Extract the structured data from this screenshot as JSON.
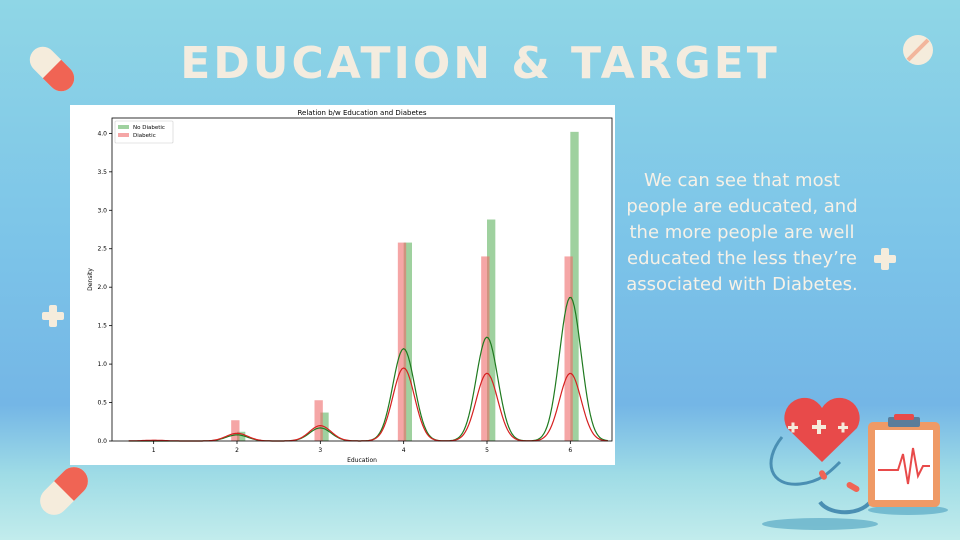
{
  "slide": {
    "title": "EDUCATION & TARGET",
    "description": "We can see that most people are educated, and the more people are well educated the less they’re associated with Diabetes."
  },
  "colors": {
    "no_diabetic": "#5fb35f",
    "diabetic": "#ee6b6b",
    "kde_no_diabetic": "#1f7a1f",
    "kde_diabetic": "#d62020"
  },
  "icons": [
    "pill-icon",
    "plus-icon",
    "heart-icon",
    "clipboard-icon",
    "stethoscope-icon"
  ],
  "chart_data": {
    "type": "bar",
    "title": "Relation b/w Education and Diabetes",
    "xlabel": "Education",
    "ylabel": "Density",
    "xlim": [
      0.5,
      6.5
    ],
    "ylim": [
      0,
      4.2
    ],
    "xticks": [
      "1",
      "2",
      "3",
      "4",
      "5",
      "6"
    ],
    "yticks": [
      "0.0",
      "0.5",
      "1.0",
      "1.5",
      "2.0",
      "2.5",
      "3.0",
      "3.5",
      "4.0"
    ],
    "legend_position": "top-left",
    "grid": false,
    "series": [
      {
        "name": "No Diabetic",
        "x": [
          1,
          2,
          3,
          4,
          5,
          6
        ],
        "values": [
          0.0,
          0.12,
          0.37,
          2.58,
          2.88,
          4.02
        ],
        "kde_peaks": [
          0.0,
          0.08,
          0.17,
          1.2,
          1.35,
          1.87
        ]
      },
      {
        "name": "Diabetic",
        "x": [
          1,
          2,
          3,
          4,
          5,
          6
        ],
        "values": [
          0.01,
          0.27,
          0.53,
          2.58,
          2.4,
          2.4
        ],
        "kde_peaks": [
          0.01,
          0.1,
          0.2,
          0.95,
          0.88,
          0.88
        ]
      }
    ]
  }
}
